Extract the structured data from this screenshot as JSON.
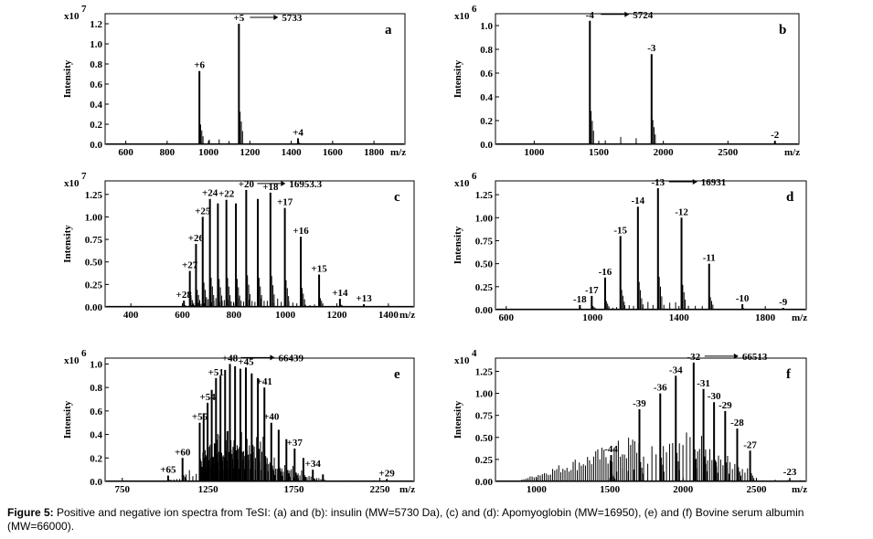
{
  "caption": {
    "label": "Figure 5:",
    "text": " Positive and negative ion spectra from TeSI: (a) and (b): insulin (MW=5730 Da), (c) and (d): Apomyoglobin (MW=16950), (e) and (f) Bovine serum albumin (MW=66000)."
  },
  "chart_data": [
    {
      "type": "line",
      "panel": "a",
      "xlabel": "m/z",
      "ylabel": "Intensity",
      "multiplier": "x10",
      "exponent": "7",
      "xlim": [
        500,
        1950
      ],
      "ylim": [
        0,
        1.3
      ],
      "xticks": [
        600,
        800,
        1000,
        1200,
        1400,
        1600,
        1800
      ],
      "yticks": [
        0.0,
        0.2,
        0.4,
        0.6,
        0.8,
        1.0,
        1.2
      ],
      "ytick_labels": [
        "0.0",
        "0.2",
        "0.4",
        "0.6",
        "0.8",
        "1.0",
        "1.2"
      ],
      "peaks": [
        {
          "x": 956,
          "y": 0.73,
          "label": "+6"
        },
        {
          "x": 1147,
          "y": 1.2,
          "label": "+5"
        },
        {
          "x": 1433,
          "y": 0.06,
          "label": "+4"
        }
      ],
      "arrow_label": "5733"
    },
    {
      "type": "line",
      "panel": "b",
      "xlabel": "m/z",
      "ylabel": "Intensity",
      "multiplier": "x10",
      "exponent": "6",
      "xlim": [
        700,
        3050
      ],
      "ylim": [
        0,
        1.1
      ],
      "xticks": [
        1000,
        1500,
        2000,
        2500
      ],
      "yticks": [
        0.0,
        0.2,
        0.4,
        0.6,
        0.8,
        1.0
      ],
      "ytick_labels": [
        "0.0",
        "0.2",
        "0.4",
        "0.6",
        "0.8",
        "1.0"
      ],
      "peaks": [
        {
          "x": 1431,
          "y": 1.04,
          "label": "-4"
        },
        {
          "x": 1909,
          "y": 0.76,
          "label": "-3"
        },
        {
          "x": 2864,
          "y": 0.03,
          "label": "-2"
        }
      ],
      "arrow_label": "5724"
    },
    {
      "type": "line",
      "panel": "c",
      "xlabel": "m/z",
      "ylabel": "Intensity",
      "multiplier": "x10",
      "exponent": "7",
      "xlim": [
        300,
        1500
      ],
      "ylim": [
        0,
        1.4
      ],
      "xticks": [
        400,
        600,
        800,
        1000,
        1200,
        1400
      ],
      "yticks": [
        0.0,
        0.25,
        0.5,
        0.75,
        1.0,
        1.25
      ],
      "ytick_labels": [
        "0.00",
        "0.25",
        "0.50",
        "0.75",
        "1.00",
        "1.25"
      ],
      "peaks": [
        {
          "x": 606,
          "y": 0.07,
          "label": "+28"
        },
        {
          "x": 629,
          "y": 0.4,
          "label": "+27"
        },
        {
          "x": 653,
          "y": 0.7,
          "label": "+26"
        },
        {
          "x": 679,
          "y": 1.0,
          "label": "+25"
        },
        {
          "x": 707,
          "y": 1.2,
          "label": "+24"
        },
        {
          "x": 738,
          "y": 1.15,
          "label": ""
        },
        {
          "x": 771,
          "y": 1.19,
          "label": "+22"
        },
        {
          "x": 808,
          "y": 1.15,
          "label": ""
        },
        {
          "x": 848,
          "y": 1.3,
          "label": "+20"
        },
        {
          "x": 893,
          "y": 1.2,
          "label": ""
        },
        {
          "x": 942,
          "y": 1.27,
          "label": "+18"
        },
        {
          "x": 998,
          "y": 1.1,
          "label": "+17"
        },
        {
          "x": 1060,
          "y": 0.78,
          "label": "+16"
        },
        {
          "x": 1131,
          "y": 0.36,
          "label": "+15"
        },
        {
          "x": 1212,
          "y": 0.09,
          "label": "+14"
        },
        {
          "x": 1305,
          "y": 0.03,
          "label": "+13"
        }
      ],
      "arrow_label": "16953.3"
    },
    {
      "type": "line",
      "panel": "d",
      "xlabel": "m/z",
      "ylabel": "Intensity",
      "multiplier": "x10",
      "exponent": "6",
      "xlim": [
        550,
        1990
      ],
      "ylim": [
        0,
        1.4
      ],
      "xticks": [
        600,
        1000,
        1400,
        1800
      ],
      "yticks": [
        0.0,
        0.25,
        0.5,
        0.75,
        1.0,
        1.25
      ],
      "ytick_labels": [
        "0.00",
        "0.25",
        "0.50",
        "0.75",
        "1.00",
        "1.25"
      ],
      "peaks": [
        {
          "x": 941,
          "y": 0.05,
          "label": "-18"
        },
        {
          "x": 996,
          "y": 0.15,
          "label": "-17"
        },
        {
          "x": 1058,
          "y": 0.35,
          "label": "-16"
        },
        {
          "x": 1129,
          "y": 0.8,
          "label": "-15"
        },
        {
          "x": 1210,
          "y": 1.12,
          "label": "-14"
        },
        {
          "x": 1303,
          "y": 1.32,
          "label": "-13"
        },
        {
          "x": 1412,
          "y": 1.0,
          "label": "-12"
        },
        {
          "x": 1540,
          "y": 0.5,
          "label": "-11"
        },
        {
          "x": 1694,
          "y": 0.06,
          "label": "-10"
        },
        {
          "x": 1883,
          "y": 0.02,
          "label": "-9"
        }
      ],
      "arrow_label": "16931"
    },
    {
      "type": "line",
      "panel": "e",
      "xlabel": "m/z",
      "ylabel": "Intensity",
      "multiplier": "x10",
      "exponent": "6",
      "xlim": [
        650,
        2450
      ],
      "ylim": [
        0,
        1.05
      ],
      "xticks": [
        750,
        1250,
        1750,
        2250
      ],
      "yticks": [
        0.0,
        0.2,
        0.4,
        0.6,
        0.8,
        1.0
      ],
      "ytick_labels": [
        "0.0",
        "0.2",
        "0.4",
        "0.6",
        "0.8",
        "1.0"
      ],
      "peaks": [
        {
          "x": 1017,
          "y": 0.05,
          "label": "+65"
        },
        {
          "x": 1101,
          "y": 0.2,
          "label": "+60"
        },
        {
          "x": 1201,
          "y": 0.5,
          "label": "+55"
        },
        {
          "x": 1224,
          "y": 0.58,
          "label": ""
        },
        {
          "x": 1247,
          "y": 0.67,
          "label": "+54"
        },
        {
          "x": 1271,
          "y": 0.78,
          "label": ""
        },
        {
          "x": 1296,
          "y": 0.88,
          "label": "+51"
        },
        {
          "x": 1322,
          "y": 0.9,
          "label": ""
        },
        {
          "x": 1349,
          "y": 0.95,
          "label": ""
        },
        {
          "x": 1377,
          "y": 1.0,
          "label": "+48"
        },
        {
          "x": 1407,
          "y": 0.98,
          "label": ""
        },
        {
          "x": 1438,
          "y": 0.96,
          "label": ""
        },
        {
          "x": 1470,
          "y": 0.97,
          "label": "+45"
        },
        {
          "x": 1504,
          "y": 0.92,
          "label": ""
        },
        {
          "x": 1540,
          "y": 0.88,
          "label": ""
        },
        {
          "x": 1578,
          "y": 0.8,
          "label": "+41"
        },
        {
          "x": 1618,
          "y": 0.5,
          "label": "+40"
        },
        {
          "x": 1661,
          "y": 0.44,
          "label": ""
        },
        {
          "x": 1706,
          "y": 0.36,
          "label": ""
        },
        {
          "x": 1754,
          "y": 0.28,
          "label": "+37"
        },
        {
          "x": 1805,
          "y": 0.2,
          "label": ""
        },
        {
          "x": 1860,
          "y": 0.1,
          "label": "+34"
        },
        {
          "x": 1919,
          "y": 0.06,
          "label": ""
        },
        {
          "x": 2291,
          "y": 0.02,
          "label": "+29"
        }
      ],
      "arrow_label": "66439"
    },
    {
      "type": "line",
      "panel": "f",
      "xlabel": "m/z",
      "ylabel": "Intensity",
      "multiplier": "x10",
      "exponent": "4",
      "xlim": [
        720,
        2840
      ],
      "ylim": [
        0,
        1.4
      ],
      "xticks": [
        1000,
        1500,
        2000,
        2500
      ],
      "yticks": [
        0.0,
        0.25,
        0.5,
        0.75,
        1.0,
        1.25
      ],
      "ytick_labels": [
        "0.00",
        "0.25",
        "0.50",
        "0.75",
        "1.00",
        "1.25"
      ],
      "peaks": [
        {
          "x": 1509,
          "y": 0.3,
          "label": "-44"
        },
        {
          "x": 1702,
          "y": 0.82,
          "label": "-39"
        },
        {
          "x": 1844,
          "y": 1.0,
          "label": "-36"
        },
        {
          "x": 1950,
          "y": 1.2,
          "label": "-34"
        },
        {
          "x": 2072,
          "y": 1.35,
          "label": "-32"
        },
        {
          "x": 2139,
          "y": 1.05,
          "label": "-31"
        },
        {
          "x": 2211,
          "y": 0.9,
          "label": "-30"
        },
        {
          "x": 2287,
          "y": 0.8,
          "label": "-29"
        },
        {
          "x": 2369,
          "y": 0.6,
          "label": "-28"
        },
        {
          "x": 2457,
          "y": 0.35,
          "label": "-27"
        },
        {
          "x": 2885,
          "y": 0.04,
          "label": "-23"
        }
      ],
      "arrow_label": "66513"
    }
  ]
}
